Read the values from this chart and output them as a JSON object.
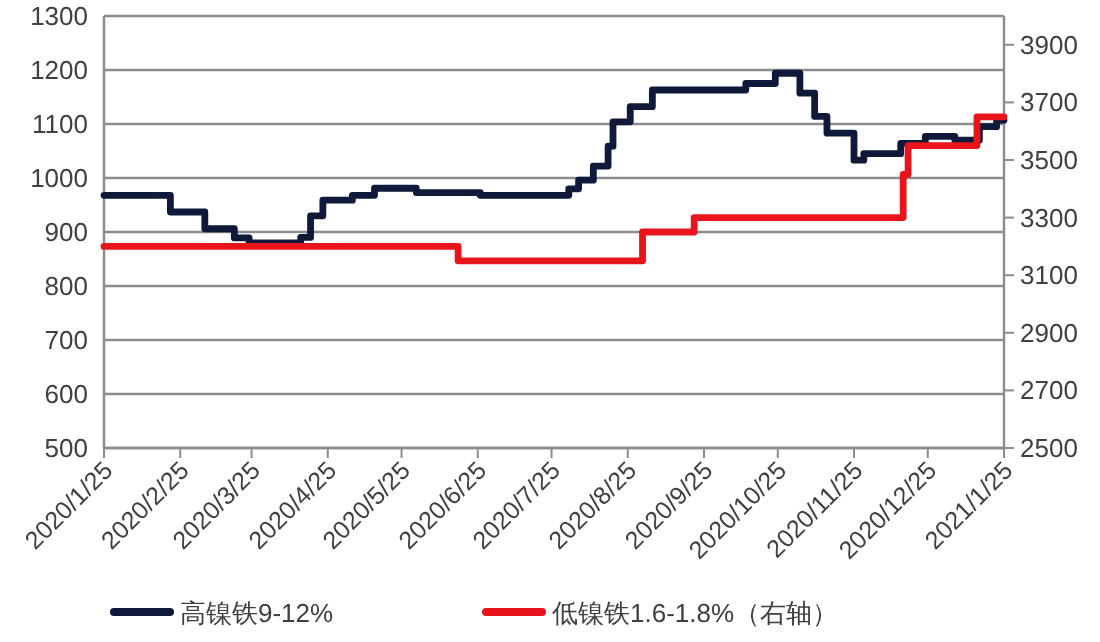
{
  "chart_data": {
    "type": "step",
    "grid": "y",
    "legend": "bottom",
    "xlim": [
      "2020-01-25",
      "2021-01-25"
    ],
    "xticks": [
      {
        "value": "2020-01-25",
        "label": "2020/1/25"
      },
      {
        "value": "2020-02-25",
        "label": "2020/2/25"
      },
      {
        "value": "2020-03-25",
        "label": "2020/3/25"
      },
      {
        "value": "2020-04-25",
        "label": "2020/4/25"
      },
      {
        "value": "2020-05-25",
        "label": "2020/5/25"
      },
      {
        "value": "2020-06-25",
        "label": "2020/6/25"
      },
      {
        "value": "2020-07-25",
        "label": "2020/7/25"
      },
      {
        "value": "2020-08-25",
        "label": "2020/8/25"
      },
      {
        "value": "2020-09-25",
        "label": "2020/9/25"
      },
      {
        "value": "2020-10-25",
        "label": "2020/10/25"
      },
      {
        "value": "2020-11-25",
        "label": "2020/11/25"
      },
      {
        "value": "2020-12-25",
        "label": "2020/12/25"
      },
      {
        "value": "2021-01-25",
        "label": "2021/1/25"
      }
    ],
    "ylim": [
      500,
      1300
    ],
    "yticks": [
      500,
      600,
      700,
      800,
      900,
      1000,
      1100,
      1200,
      1300
    ],
    "y2lim": [
      2500,
      4000
    ],
    "y2ticks": [
      2500,
      2700,
      2900,
      3100,
      3300,
      3500,
      3700,
      3900
    ],
    "series": [
      {
        "name": "高镍铁9-12%",
        "color": "#0f1a3a",
        "x": [
          "2020-01-25",
          "2020-02-21",
          "2020-03-06",
          "2020-03-18",
          "2020-03-24",
          "2020-04-14",
          "2020-04-18",
          "2020-04-23",
          "2020-05-05",
          "2020-05-14",
          "2020-05-31",
          "2020-06-26",
          "2020-08-01",
          "2020-08-05",
          "2020-08-11",
          "2020-08-17",
          "2020-08-19",
          "2020-08-26",
          "2020-09-04",
          "2020-10-12",
          "2020-10-24",
          "2020-11-03",
          "2020-11-09",
          "2020-11-14",
          "2020-11-25",
          "2020-11-29",
          "2020-12-14",
          "2020-12-24",
          "2021-01-05",
          "2021-01-15",
          "2021-01-22",
          "2021-01-25"
        ],
        "values": [
          968,
          937,
          906,
          889,
          880,
          890,
          930,
          959,
          968,
          981,
          973,
          968,
          980,
          996,
          1022,
          1059,
          1104,
          1132,
          1163,
          1175,
          1194,
          1157,
          1114,
          1083,
          1033,
          1045,
          1064,
          1077,
          1070,
          1095,
          1107,
          1107
        ]
      },
      {
        "name": "低镍铁1.6-1.8%（右轴）",
        "color": "#e8141b",
        "axis": "y2",
        "x": [
          "2020-01-25",
          "2020-06-17",
          "2020-08-31",
          "2020-09-21",
          "2020-12-15",
          "2020-12-17",
          "2021-01-14",
          "2021-01-25"
        ],
        "values": [
          3200,
          3150,
          3250,
          3300,
          3450,
          3550,
          3650,
          3650
        ]
      }
    ]
  }
}
